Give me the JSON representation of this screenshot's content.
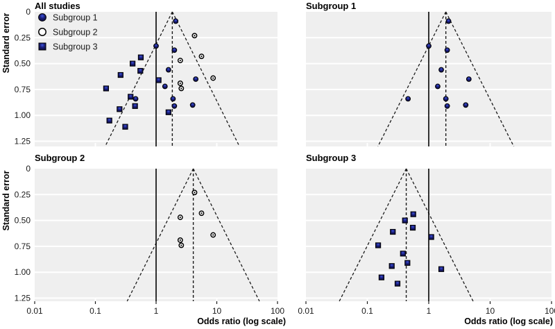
{
  "figure": {
    "bg": "#ffffff",
    "plot_bg": "#efefef",
    "grid_color": "#ffffff",
    "text_color": "#1a1a1a",
    "line_color": "#000000",
    "navy": "#1b1f7a",
    "navy_light": "#3d55e0",
    "navy_dark": "#0c0c3f"
  },
  "chart_data": {
    "type": "scatter",
    "subtype": "funnel-plot-meta-analysis",
    "xlabel": "Odds ratio (log scale)",
    "ylabel": "Standard error",
    "x_scale": "log",
    "x_ticks": [
      {
        "v": 0.01,
        "label": "0.01"
      },
      {
        "v": 0.1,
        "label": "0.1"
      },
      {
        "v": 1,
        "label": "1"
      },
      {
        "v": 10,
        "label": "10"
      },
      {
        "v": 100,
        "label": "100"
      }
    ],
    "y_ticks": [
      {
        "v": 0,
        "label": "0"
      },
      {
        "v": 0.25,
        "label": "0.25"
      },
      {
        "v": 0.5,
        "label": "0.50"
      },
      {
        "v": 0.75,
        "label": "0.75"
      },
      {
        "v": 1.0,
        "label": "1.00"
      },
      {
        "v": 1.25,
        "label": "1.25"
      }
    ],
    "x_range_log10": [
      -2,
      2
    ],
    "y_range": [
      0,
      1.25
    ],
    "reference_or": 1,
    "funnel_z": 1.96,
    "grid": "horizontal-white-on-gray",
    "legend": {
      "position": "top-left-inside-first-panel",
      "entries": [
        {
          "label": "Subgroup 1",
          "marker": "filled-circle"
        },
        {
          "label": "Subgroup 2",
          "marker": "open-circle"
        },
        {
          "label": "Subgroup 3",
          "marker": "filled-square"
        }
      ]
    },
    "series": {
      "subgroup1": {
        "name": "Subgroup 1",
        "marker": "filled-circle",
        "points_or_se": [
          [
            2.1,
            0.09
          ],
          [
            1.0,
            0.33
          ],
          [
            2.0,
            0.37
          ],
          [
            1.6,
            0.56
          ],
          [
            4.5,
            0.65
          ],
          [
            1.4,
            0.72
          ],
          [
            1.9,
            0.84
          ],
          [
            0.46,
            0.84
          ],
          [
            4.0,
            0.9
          ],
          [
            2.0,
            0.91
          ]
        ]
      },
      "subgroup2": {
        "name": "Subgroup 2",
        "marker": "open-circle",
        "points_or_se": [
          [
            4.3,
            0.23
          ],
          [
            5.6,
            0.43
          ],
          [
            2.5,
            0.47
          ],
          [
            8.7,
            0.64
          ],
          [
            2.5,
            0.69
          ],
          [
            2.6,
            0.74
          ]
        ]
      },
      "subgroup3": {
        "name": "Subgroup 3",
        "marker": "filled-square",
        "points_or_se": [
          [
            0.56,
            0.44
          ],
          [
            0.41,
            0.5
          ],
          [
            0.55,
            0.57
          ],
          [
            0.26,
            0.61
          ],
          [
            1.1,
            0.66
          ],
          [
            0.15,
            0.74
          ],
          [
            0.38,
            0.82
          ],
          [
            0.45,
            0.91
          ],
          [
            0.25,
            0.94
          ],
          [
            1.6,
            0.97
          ],
          [
            0.17,
            1.05
          ],
          [
            0.31,
            1.11
          ]
        ]
      }
    },
    "panels": [
      {
        "title": "All studies",
        "series": [
          "subgroup1",
          "subgroup2",
          "subgroup3"
        ],
        "pooled_or": 1.85,
        "show_legend": true,
        "show_y_labels": true,
        "show_x_labels": false
      },
      {
        "title": "Subgroup 1",
        "series": [
          "subgroup1"
        ],
        "pooled_or": 1.9,
        "show_legend": false,
        "show_y_labels": false,
        "show_x_labels": false
      },
      {
        "title": "Subgroup 2",
        "series": [
          "subgroup2"
        ],
        "pooled_or": 4.1,
        "show_legend": false,
        "show_y_labels": true,
        "show_x_labels": true
      },
      {
        "title": "Subgroup 3",
        "series": [
          "subgroup3"
        ],
        "pooled_or": 0.43,
        "show_legend": false,
        "show_y_labels": false,
        "show_x_labels": true
      }
    ]
  }
}
